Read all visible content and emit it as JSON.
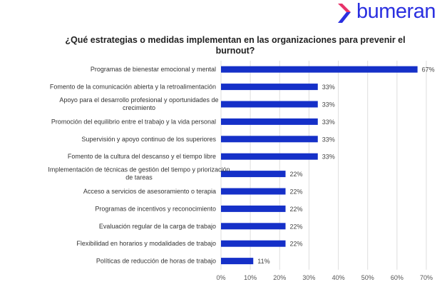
{
  "logo": {
    "text": "bumeran",
    "colors": {
      "chevron_top": "#e8336a",
      "chevron_bottom": "#2a2fe0",
      "text": "#2a2fe0"
    }
  },
  "chart_data": {
    "type": "bar",
    "orientation": "horizontal",
    "title": "¿Qué estrategias o medidas implementan en las organizaciones para prevenir el burnout?",
    "categories": [
      "Programas de bienestar emocional y mental",
      "Fomento de la comunicación abierta y la retroalimentación",
      "Apoyo para el desarrollo profesional y oportunidades de crecimiento",
      "Promoción del equilibrio entre el trabajo y la vida personal",
      "Supervisión y apoyo continuo de los superiores",
      "Fomento de la cultura del descanso y el tiempo libre",
      "Implementación de técnicas de gestión del tiempo y priorización de tareas",
      "Acceso a servicios de asesoramiento o terapia",
      "Programas de incentivos y reconocimiento",
      "Evaluación regular de la carga de trabajo",
      "Flexibilidad en horarios y modalidades de trabajo",
      "Políticas de reducción de horas de trabajo"
    ],
    "values": [
      67,
      33,
      33,
      33,
      33,
      33,
      22,
      22,
      22,
      22,
      22,
      11
    ],
    "data_labels": [
      "67%",
      "33%",
      "33%",
      "33%",
      "33%",
      "33%",
      "22%",
      "22%",
      "22%",
      "22%",
      "22%",
      "11%"
    ],
    "xlim": [
      0,
      70
    ],
    "xticks": [
      "0%",
      "10%",
      "20%",
      "30%",
      "40%",
      "50%",
      "60%",
      "70%"
    ],
    "grid": true,
    "bar_color": "#1530c8"
  }
}
